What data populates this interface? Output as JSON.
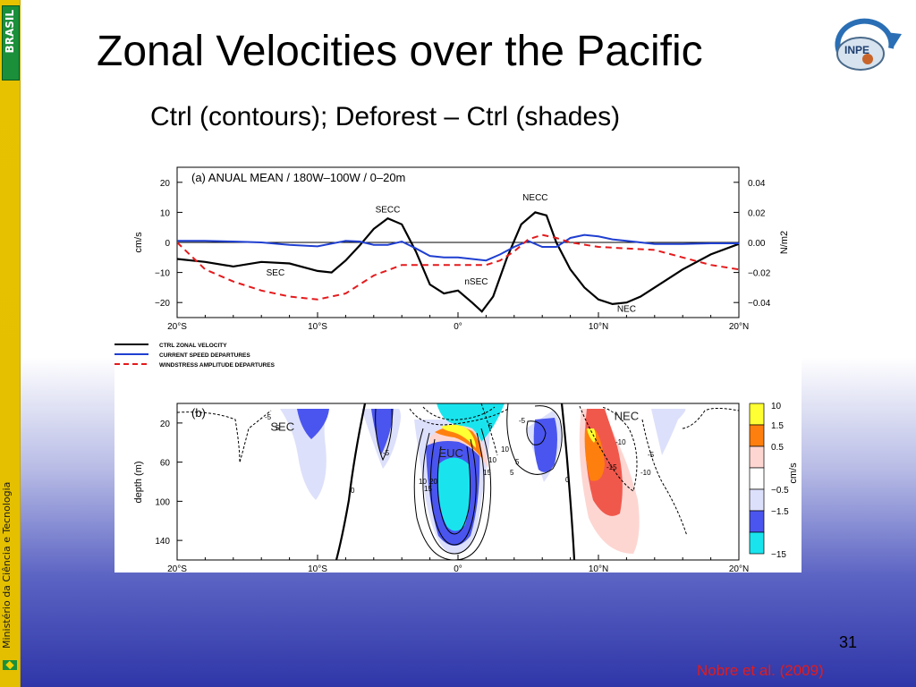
{
  "sidebar": {
    "brand": "BRASIL",
    "ministry": "Ministério da Ciência e Tecnologia"
  },
  "slide": {
    "title": "Zonal Velocities over the Pacific",
    "subtitle": "Ctrl (contours); Deforest – Ctrl (shades)",
    "logo_text": "INPE",
    "slide_number": "31",
    "citation": "Nobre et al. (2009)"
  },
  "colors": {
    "ctrl": "#000000",
    "current": "#1f3fd0",
    "windstress": "#e41a1c"
  },
  "chart_data": [
    {
      "type": "line",
      "panel_label": "(a) ANUAL MEAN / 180W–100W / 0–20m",
      "x_ticks": [
        "20°S",
        "10°S",
        "0°",
        "10°N",
        "20°N"
      ],
      "xlim": [
        -20,
        20
      ],
      "ylabel_left": "cm/s",
      "ylabel_right": "N/m2",
      "ylim_left": [
        -25,
        25
      ],
      "yticks_left": [
        20,
        10,
        0,
        -10,
        -20
      ],
      "ylim_right": [
        -0.05,
        0.05
      ],
      "yticks_right": [
        "0.04",
        "0.02",
        "0.00",
        "−0.02",
        "−0.04"
      ],
      "legend": [
        {
          "name": "CTRL ZONAL VELOCITY",
          "style": "solid",
          "color": "#000000"
        },
        {
          "name": "CURRENT SPEED DEPARTURES",
          "style": "solid",
          "color": "#1f3fd0"
        },
        {
          "name": "WINDSTRESS AMPLITUDE DEPARTURES",
          "style": "dashed",
          "color": "#e41a1c"
        }
      ],
      "annotations": [
        {
          "text": "SEC",
          "x": -13,
          "y": -11
        },
        {
          "text": "SECC",
          "x": -5,
          "y": 10
        },
        {
          "text": "nSEC",
          "x": 1.3,
          "y": -14
        },
        {
          "text": "NECC",
          "x": 5.5,
          "y": 14
        },
        {
          "text": "NEC",
          "x": 12,
          "y": -23
        }
      ],
      "series": [
        {
          "name": "CTRL ZONAL VELOCITY",
          "axis": "left",
          "x": [
            -20,
            -18,
            -16,
            -14,
            -12,
            -10,
            -9,
            -8,
            -7,
            -6,
            -5,
            -4,
            -3,
            -2,
            -1,
            0,
            1,
            1.7,
            2.5,
            3.5,
            4.5,
            5.5,
            6.3,
            7,
            8,
            9,
            10,
            11,
            12,
            13,
            14,
            16,
            18,
            20
          ],
          "values": [
            -5.5,
            -6.5,
            -8,
            -6.5,
            -7,
            -9.5,
            -10,
            -6,
            -1,
            4.5,
            8,
            6,
            -3,
            -14,
            -17,
            -16,
            -20,
            -23,
            -18,
            -5,
            6,
            10,
            9,
            0,
            -9,
            -15,
            -19,
            -20.5,
            -20,
            -18,
            -15,
            -9,
            -4,
            -0.5
          ]
        },
        {
          "name": "CURRENT SPEED DEPARTURES",
          "axis": "left",
          "x": [
            -20,
            -18,
            -16,
            -14,
            -12,
            -10,
            -8,
            -7,
            -6,
            -5,
            -4,
            -3,
            -2,
            -1,
            0,
            1,
            2,
            3,
            4,
            5,
            6,
            7,
            8,
            9,
            10,
            11,
            12,
            14,
            16,
            18,
            20
          ],
          "values": [
            0.5,
            0.5,
            0.3,
            0,
            -0.8,
            -1.3,
            0.5,
            0.3,
            -0.8,
            -0.8,
            0.3,
            -2,
            -4.5,
            -5,
            -5,
            -5.5,
            -6,
            -4,
            -1.5,
            0.5,
            -1.5,
            -1.5,
            1.5,
            2.5,
            2,
            1,
            0.5,
            -0.5,
            -0.5,
            -0.3,
            -0.3
          ]
        },
        {
          "name": "WINDSTRESS AMPLITUDE DEPARTURES",
          "axis": "right",
          "x": [
            -20,
            -18,
            -16,
            -14,
            -12,
            -10,
            -8,
            -6,
            -4,
            -2,
            0,
            2,
            3,
            4,
            5,
            6,
            7,
            8,
            10,
            12,
            14,
            16,
            18,
            20
          ],
          "values": [
            0,
            -0.018,
            -0.026,
            -0.032,
            -0.036,
            -0.038,
            -0.034,
            -0.022,
            -0.015,
            -0.015,
            -0.015,
            -0.015,
            -0.012,
            -0.006,
            0.002,
            0.005,
            0.003,
            0,
            -0.003,
            -0.004,
            -0.005,
            -0.01,
            -0.015,
            -0.018
          ]
        }
      ]
    },
    {
      "type": "heatmap",
      "panel_label": "(b)",
      "x_ticks": [
        "20°S",
        "10°S",
        "0°",
        "10°N",
        "20°N"
      ],
      "xlim": [
        -20,
        20
      ],
      "ylabel": "depth (m)",
      "yticks": [
        20,
        60,
        100,
        140
      ],
      "ylim": [
        0,
        160
      ],
      "colorbar_label": "cm/s",
      "colorbar_ticks": [
        "10",
        "1.5",
        "0.5",
        "−0.5",
        "−1.5",
        "−15"
      ],
      "colorbar_colors": [
        "#ffff33",
        "#ff7f0e",
        "#fdd6d2",
        "#ffffff",
        "#dde0fb",
        "#4a55ef",
        "#19e4ee"
      ],
      "annotations": [
        {
          "text": "SEC",
          "x": -12.5,
          "y": 28
        },
        {
          "text": "EUC",
          "x": -0.5,
          "y": 55
        },
        {
          "text": "NEC",
          "x": 12,
          "y": 17
        }
      ],
      "contour_labels": [
        "-5",
        "5",
        "0",
        "5",
        "10",
        "15",
        "20",
        "10",
        "15",
        "-5",
        "-10",
        "-15",
        "0",
        "5",
        "-5",
        "-5",
        "-10",
        "10",
        "5"
      ]
    }
  ]
}
